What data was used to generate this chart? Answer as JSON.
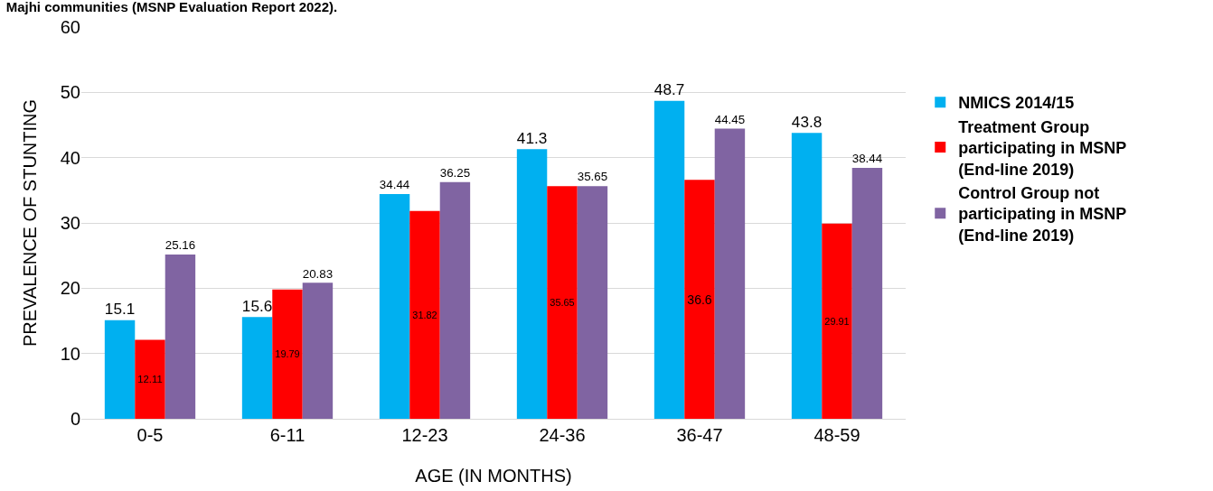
{
  "chart_data": {
    "type": "bar",
    "title": "Majhi communities (MSNP Evaluation Report 2022).",
    "xlabel": "AGE (IN MONTHS)",
    "ylabel": "PREVALENCE OF STUNTING",
    "categories": [
      "0-5",
      "6-11",
      "12-23",
      "24-36",
      "36-47",
      "48-59"
    ],
    "series": [
      {
        "name": "NMICS 2014/15",
        "color": "#00b0f0",
        "values": [
          15.1,
          15.6,
          34.44,
          41.3,
          48.7,
          43.8
        ]
      },
      {
        "name": "Treatment Group participating in MSNP (End-line 2019)",
        "color": "#ff0000",
        "values": [
          12.11,
          19.79,
          31.82,
          35.65,
          36.6,
          29.91
        ]
      },
      {
        "name": "Control Group not participating in MSNP (End-line 2019)",
        "color": "#8064a2",
        "values": [
          25.16,
          20.83,
          36.25,
          35.65,
          44.45,
          38.44
        ]
      }
    ],
    "ylim": [
      0,
      60
    ],
    "yticks": [
      0,
      10,
      20,
      30,
      40,
      50,
      60
    ],
    "grid": "y",
    "legend": "right",
    "data_labels": true
  }
}
